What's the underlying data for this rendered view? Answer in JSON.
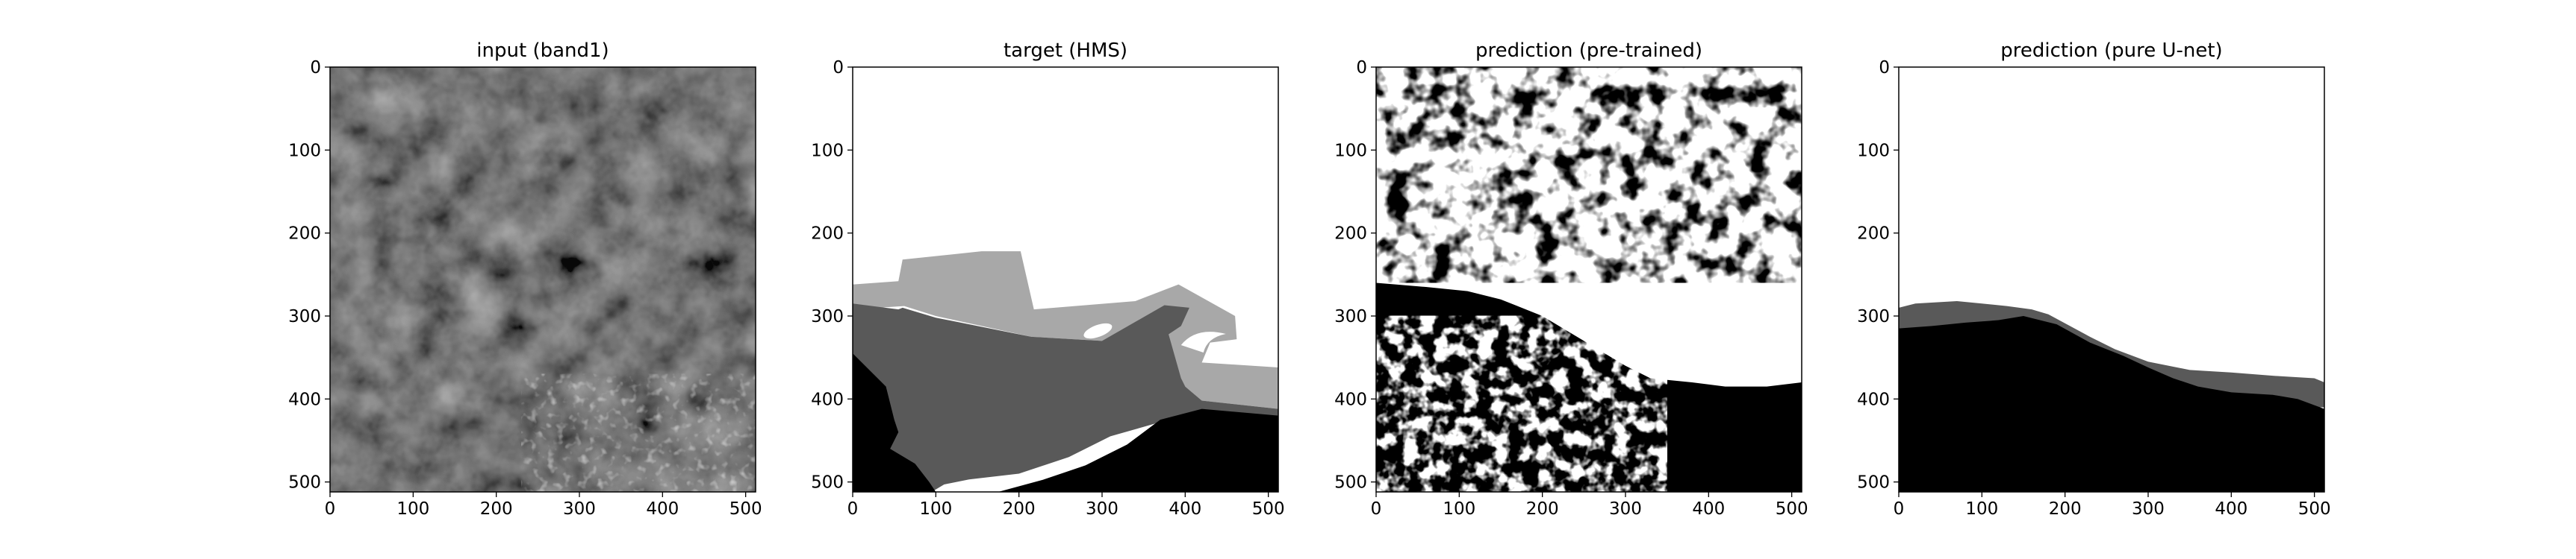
{
  "chart_data": [
    {
      "type": "heatmap",
      "title": "input (band1)",
      "xlim": [
        0,
        512
      ],
      "ylim": [
        512,
        0
      ],
      "xticks": [
        "0",
        "100",
        "200",
        "300",
        "400",
        "500"
      ],
      "yticks": [
        "0",
        "100",
        "200",
        "300",
        "400",
        "500"
      ],
      "colormap": "gray",
      "content": "grayscale satellite image"
    },
    {
      "type": "heatmap",
      "title": "target (HMS)",
      "xlim": [
        0,
        512
      ],
      "ylim": [
        512,
        0
      ],
      "xticks": [
        "0",
        "100",
        "200",
        "300",
        "400",
        "500"
      ],
      "yticks": [
        "0",
        "100",
        "200",
        "300",
        "400",
        "500"
      ],
      "colormap": "gray",
      "regions": [
        {
          "level": "white",
          "color": "#ffffff",
          "polygon": [
            [
              0,
              0
            ],
            [
              512,
              0
            ],
            [
              512,
              512
            ],
            [
              0,
              512
            ]
          ]
        },
        {
          "level": "light",
          "color": "#a8a8a8",
          "polygon": [
            [
              0,
              262
            ],
            [
              55,
              258
            ],
            [
              60,
              232
            ],
            [
              155,
              222
            ],
            [
              202,
              222
            ],
            [
              218,
              292
            ],
            [
              340,
              282
            ],
            [
              392,
              262
            ],
            [
              460,
              300
            ],
            [
              462,
              328
            ],
            [
              430,
              332
            ],
            [
              420,
              356
            ],
            [
              512,
              362
            ],
            [
              512,
              412
            ],
            [
              420,
              402
            ],
            [
              400,
              385
            ],
            [
              360,
              372
            ],
            [
              300,
              330
            ],
            [
              215,
              325
            ],
            [
              100,
              300
            ],
            [
              62,
              288
            ],
            [
              0,
              292
            ]
          ]
        },
        {
          "level": "medium",
          "color": "#595959",
          "polygon": [
            [
              0,
              285
            ],
            [
              55,
              292
            ],
            [
              60,
              290
            ],
            [
              100,
              302
            ],
            [
              215,
              325
            ],
            [
              300,
              330
            ],
            [
              375,
              287
            ],
            [
              405,
              290
            ],
            [
              395,
              312
            ],
            [
              380,
              322
            ],
            [
              395,
              375
            ],
            [
              400,
              385
            ],
            [
              420,
              402
            ],
            [
              512,
              412
            ],
            [
              512,
              420
            ],
            [
              450,
              418
            ],
            [
              380,
              425
            ],
            [
              310,
              445
            ],
            [
              260,
              470
            ],
            [
              200,
              490
            ],
            [
              140,
              497
            ],
            [
              110,
              503
            ],
            [
              95,
              512
            ],
            [
              0,
              512
            ]
          ]
        },
        {
          "level": "black",
          "color": "#000000",
          "polygon": [
            [
              0,
              345
            ],
            [
              40,
              385
            ],
            [
              50,
              425
            ],
            [
              55,
              440
            ],
            [
              45,
              460
            ],
            [
              75,
              478
            ],
            [
              92,
              500
            ],
            [
              100,
              512
            ],
            [
              175,
              512
            ],
            [
              230,
              497
            ],
            [
              280,
              480
            ],
            [
              330,
              455
            ],
            [
              370,
              425
            ],
            [
              420,
              412
            ],
            [
              512,
              420
            ],
            [
              512,
              512
            ],
            [
              0,
              512
            ]
          ]
        }
      ]
    },
    {
      "type": "heatmap",
      "title": "prediction (pre-trained)",
      "xlim": [
        0,
        512
      ],
      "ylim": [
        512,
        0
      ],
      "xticks": [
        "0",
        "100",
        "200",
        "300",
        "400",
        "500"
      ],
      "yticks": [
        "0",
        "100",
        "200",
        "300",
        "400",
        "500"
      ],
      "colormap": "gray",
      "content": "binary mask, white upper region, black lower region"
    },
    {
      "type": "heatmap",
      "title": "prediction (pure U-net)",
      "xlim": [
        0,
        512
      ],
      "ylim": [
        512,
        0
      ],
      "xticks": [
        "0",
        "100",
        "200",
        "300",
        "400",
        "500"
      ],
      "yticks": [
        "0",
        "100",
        "200",
        "300",
        "400",
        "500"
      ],
      "colormap": "gray",
      "content": "white upper region, gray band, black lower region"
    }
  ]
}
